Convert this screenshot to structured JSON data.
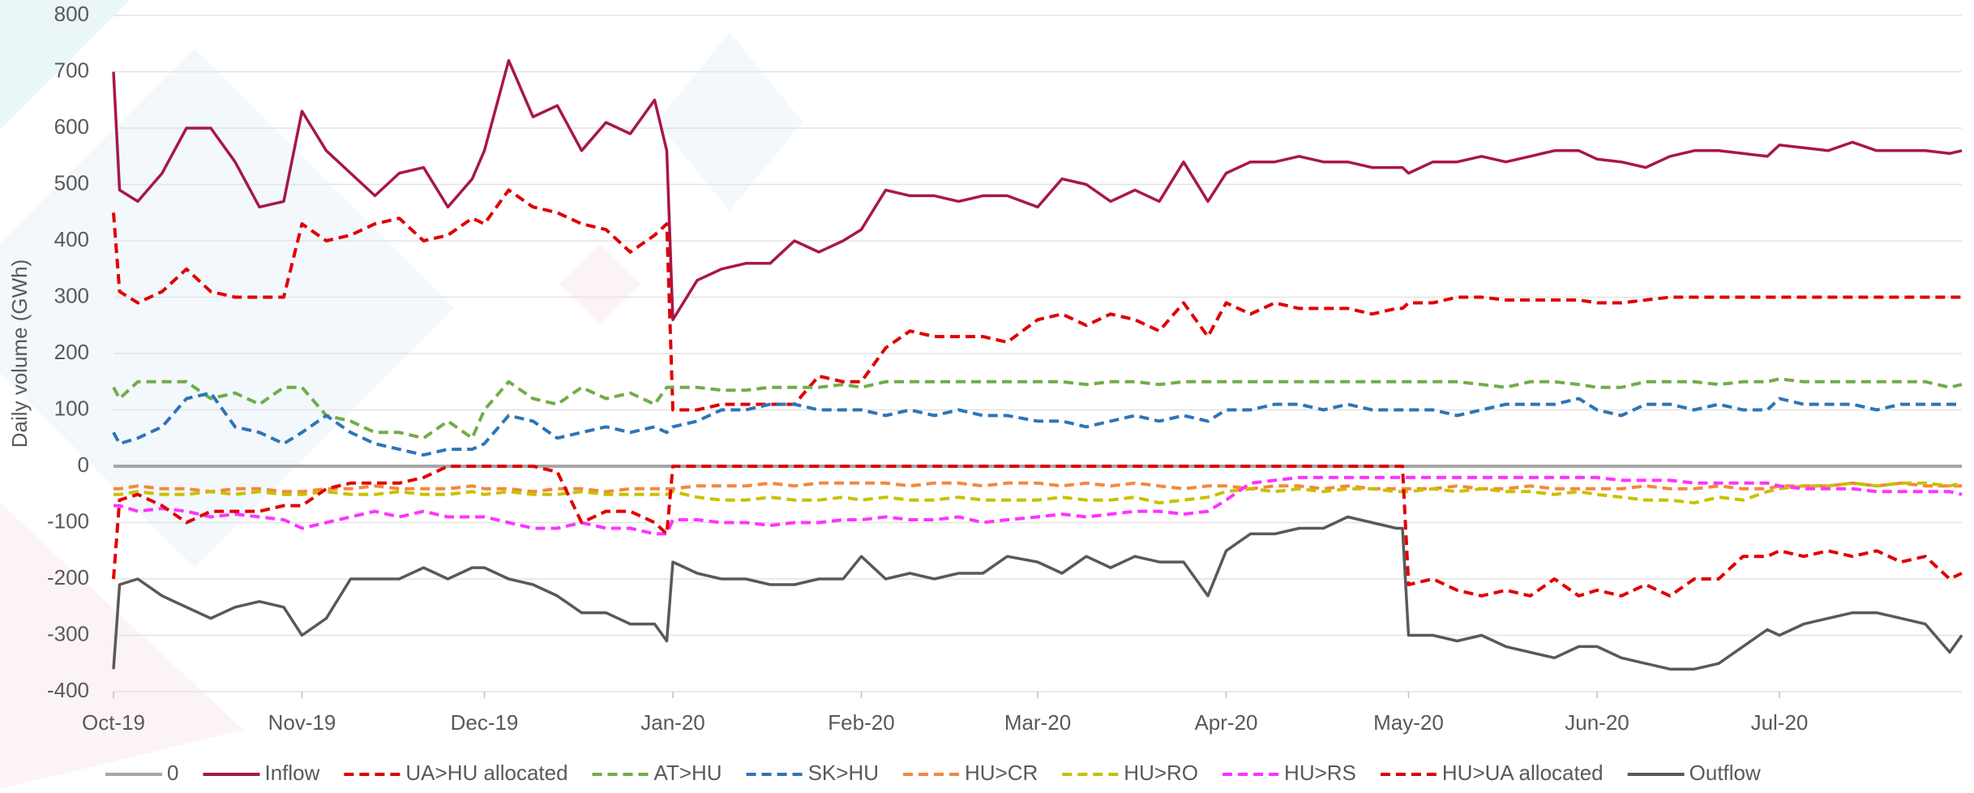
{
  "chart_data": {
    "type": "line",
    "y_label": "Daily volume (GWh)",
    "grid": true,
    "legend": "bottom",
    "xlim": [
      0,
      304
    ],
    "ylim": [
      -400,
      800
    ],
    "yticks": [
      -400,
      -300,
      -200,
      -100,
      0,
      100,
      200,
      300,
      400,
      500,
      600,
      700,
      800
    ],
    "xticks": [
      {
        "value": 0,
        "label": "Oct-19"
      },
      {
        "value": 31,
        "label": "Nov-19"
      },
      {
        "value": 61,
        "label": "Dec-19"
      },
      {
        "value": 92,
        "label": "Jan-20"
      },
      {
        "value": 123,
        "label": "Feb-20"
      },
      {
        "value": 152,
        "label": "Mar-20"
      },
      {
        "value": 183,
        "label": "Apr-20"
      },
      {
        "value": 213,
        "label": "May-20"
      },
      {
        "value": 244,
        "label": "Jun-20"
      },
      {
        "value": 274,
        "label": "Jul-20"
      }
    ],
    "x": [
      0,
      1,
      4,
      8,
      12,
      16,
      20,
      24,
      28,
      31,
      35,
      39,
      43,
      47,
      51,
      55,
      59,
      61,
      65,
      69,
      73,
      77,
      81,
      85,
      89,
      91,
      92,
      96,
      100,
      104,
      108,
      112,
      116,
      120,
      123,
      127,
      131,
      135,
      139,
      143,
      147,
      152,
      156,
      160,
      164,
      168,
      172,
      176,
      180,
      183,
      187,
      191,
      195,
      199,
      203,
      207,
      211,
      212,
      213,
      217,
      221,
      225,
      229,
      233,
      237,
      241,
      244,
      248,
      252,
      256,
      260,
      264,
      268,
      272,
      274,
      278,
      282,
      286,
      290,
      294,
      298,
      302,
      304
    ],
    "series": [
      {
        "name": "0",
        "color": "#a6a6a6",
        "style": "solid",
        "values": [
          0,
          0,
          0,
          0,
          0,
          0,
          0,
          0,
          0,
          0,
          0,
          0,
          0,
          0,
          0,
          0,
          0,
          0,
          0,
          0,
          0,
          0,
          0,
          0,
          0,
          0,
          0,
          0,
          0,
          0,
          0,
          0,
          0,
          0,
          0,
          0,
          0,
          0,
          0,
          0,
          0,
          0,
          0,
          0,
          0,
          0,
          0,
          0,
          0,
          0,
          0,
          0,
          0,
          0,
          0,
          0,
          0,
          0,
          0,
          0,
          0,
          0,
          0,
          0,
          0,
          0,
          0,
          0,
          0,
          0,
          0,
          0,
          0,
          0,
          0,
          0,
          0,
          0,
          0,
          0,
          0,
          0,
          0
        ]
      },
      {
        "name": "Inflow",
        "color": "#a8174a",
        "style": "solid",
        "values": [
          700,
          490,
          470,
          520,
          600,
          600,
          540,
          460,
          470,
          630,
          560,
          520,
          480,
          520,
          530,
          460,
          510,
          560,
          720,
          620,
          640,
          560,
          610,
          590,
          650,
          560,
          260,
          330,
          350,
          360,
          360,
          400,
          380,
          400,
          420,
          490,
          480,
          480,
          470,
          480,
          480,
          460,
          510,
          500,
          470,
          490,
          470,
          540,
          470,
          520,
          540,
          540,
          550,
          540,
          540,
          530,
          530,
          530,
          520,
          540,
          540,
          550,
          540,
          550,
          560,
          560,
          545,
          540,
          530,
          550,
          560,
          560,
          555,
          550,
          570,
          565,
          560,
          575,
          560,
          560,
          560,
          555,
          560
        ]
      },
      {
        "name": "UA>HU allocated",
        "color": "#e00000",
        "style": "dashed",
        "values": [
          450,
          310,
          290,
          310,
          350,
          310,
          300,
          300,
          300,
          430,
          400,
          410,
          430,
          440,
          400,
          410,
          440,
          430,
          490,
          460,
          450,
          430,
          420,
          380,
          410,
          430,
          100,
          100,
          110,
          110,
          110,
          110,
          160,
          150,
          150,
          210,
          240,
          230,
          230,
          230,
          220,
          260,
          270,
          250,
          270,
          260,
          240,
          290,
          230,
          290,
          270,
          290,
          280,
          280,
          280,
          270,
          280,
          280,
          290,
          290,
          300,
          300,
          295,
          295,
          295,
          295,
          290,
          290,
          295,
          300,
          300,
          300,
          300,
          300,
          300,
          300,
          300,
          300,
          300,
          300,
          300,
          300,
          300
        ]
      },
      {
        "name": "AT>HU",
        "color": "#70ad47",
        "style": "dashed",
        "values": [
          140,
          120,
          150,
          150,
          150,
          120,
          130,
          110,
          140,
          140,
          90,
          80,
          60,
          60,
          50,
          80,
          50,
          100,
          150,
          120,
          110,
          140,
          120,
          130,
          110,
          140,
          140,
          140,
          135,
          135,
          140,
          140,
          140,
          145,
          140,
          150,
          150,
          150,
          150,
          150,
          150,
          150,
          150,
          145,
          150,
          150,
          145,
          150,
          150,
          150,
          150,
          150,
          150,
          150,
          150,
          150,
          150,
          150,
          150,
          150,
          150,
          145,
          140,
          150,
          150,
          145,
          140,
          140,
          150,
          150,
          150,
          145,
          150,
          150,
          155,
          150,
          150,
          150,
          150,
          150,
          150,
          140,
          145
        ]
      },
      {
        "name": "SK>HU",
        "color": "#2e75b6",
        "style": "dashed",
        "values": [
          60,
          40,
          50,
          70,
          120,
          130,
          70,
          60,
          40,
          60,
          90,
          60,
          40,
          30,
          20,
          30,
          30,
          40,
          90,
          80,
          50,
          60,
          70,
          60,
          70,
          60,
          70,
          80,
          100,
          100,
          110,
          110,
          100,
          100,
          100,
          90,
          100,
          90,
          100,
          90,
          90,
          80,
          80,
          70,
          80,
          90,
          80,
          90,
          80,
          100,
          100,
          110,
          110,
          100,
          110,
          100,
          100,
          100,
          100,
          100,
          90,
          100,
          110,
          110,
          110,
          120,
          100,
          90,
          110,
          110,
          100,
          110,
          100,
          100,
          120,
          110,
          110,
          110,
          100,
          110,
          110,
          110,
          110
        ]
      },
      {
        "name": "HU>CR",
        "color": "#f4883a",
        "style": "dashed",
        "values": [
          -40,
          -40,
          -35,
          -40,
          -40,
          -45,
          -40,
          -40,
          -45,
          -45,
          -40,
          -40,
          -35,
          -40,
          -40,
          -40,
          -35,
          -40,
          -40,
          -45,
          -40,
          -40,
          -45,
          -40,
          -40,
          -40,
          -40,
          -35,
          -35,
          -35,
          -30,
          -35,
          -30,
          -30,
          -30,
          -30,
          -35,
          -30,
          -30,
          -35,
          -30,
          -30,
          -35,
          -30,
          -35,
          -30,
          -35,
          -40,
          -35,
          -35,
          -40,
          -35,
          -35,
          -40,
          -35,
          -40,
          -40,
          -40,
          -40,
          -40,
          -35,
          -40,
          -40,
          -35,
          -40,
          -40,
          -40,
          -40,
          -35,
          -40,
          -40,
          -35,
          -40,
          -40,
          -35,
          -35,
          -35,
          -30,
          -35,
          -30,
          -35,
          -35,
          -35
        ]
      },
      {
        "name": "HU>RO",
        "color": "#c9c000",
        "style": "dashed",
        "values": [
          -50,
          -50,
          -45,
          -50,
          -50,
          -45,
          -50,
          -45,
          -50,
          -50,
          -45,
          -50,
          -50,
          -45,
          -50,
          -50,
          -45,
          -50,
          -45,
          -50,
          -50,
          -45,
          -50,
          -50,
          -50,
          -50,
          -45,
          -55,
          -60,
          -60,
          -55,
          -60,
          -60,
          -55,
          -60,
          -55,
          -60,
          -60,
          -55,
          -60,
          -60,
          -60,
          -55,
          -60,
          -60,
          -55,
          -65,
          -60,
          -55,
          -45,
          -40,
          -45,
          -40,
          -45,
          -40,
          -40,
          -45,
          -45,
          -45,
          -40,
          -45,
          -40,
          -45,
          -45,
          -50,
          -45,
          -50,
          -55,
          -60,
          -60,
          -65,
          -55,
          -60,
          -45,
          -40,
          -35,
          -35,
          -30,
          -35,
          -30,
          -30,
          -35,
          -30
        ]
      },
      {
        "name": "HU>RS",
        "color": "#ff33ff",
        "style": "dashed",
        "values": [
          -70,
          -70,
          -80,
          -75,
          -80,
          -90,
          -85,
          -90,
          -95,
          -110,
          -100,
          -90,
          -80,
          -90,
          -80,
          -90,
          -90,
          -90,
          -100,
          -110,
          -110,
          -100,
          -110,
          -110,
          -120,
          -120,
          -95,
          -95,
          -100,
          -100,
          -105,
          -100,
          -100,
          -95,
          -95,
          -90,
          -95,
          -95,
          -90,
          -100,
          -95,
          -90,
          -85,
          -90,
          -85,
          -80,
          -80,
          -85,
          -80,
          -60,
          -30,
          -25,
          -20,
          -20,
          -20,
          -20,
          -20,
          -20,
          -20,
          -20,
          -20,
          -20,
          -20,
          -20,
          -20,
          -20,
          -20,
          -25,
          -25,
          -25,
          -30,
          -30,
          -30,
          -30,
          -35,
          -40,
          -40,
          -40,
          -45,
          -45,
          -45,
          -45,
          -50
        ]
      },
      {
        "name": "HU>UA allocated",
        "color": "#e00000",
        "style": "dashed",
        "values": [
          -200,
          -60,
          -50,
          -70,
          -100,
          -80,
          -80,
          -80,
          -70,
          -70,
          -40,
          -30,
          -30,
          -30,
          -20,
          0,
          0,
          0,
          0,
          0,
          -10,
          -100,
          -80,
          -80,
          -100,
          -120,
          0,
          0,
          0,
          0,
          0,
          0,
          0,
          0,
          0,
          0,
          0,
          0,
          0,
          0,
          0,
          0,
          0,
          0,
          0,
          0,
          0,
          0,
          0,
          0,
          0,
          0,
          0,
          0,
          0,
          0,
          0,
          0,
          -210,
          -200,
          -220,
          -230,
          -220,
          -230,
          -200,
          -230,
          -220,
          -230,
          -210,
          -230,
          -200,
          -200,
          -160,
          -160,
          -150,
          -160,
          -150,
          -160,
          -150,
          -170,
          -160,
          -200,
          -190
        ]
      },
      {
        "name": "Outflow",
        "color": "#595959",
        "style": "solid",
        "values": [
          -360,
          -210,
          -200,
          -230,
          -250,
          -270,
          -250,
          -240,
          -250,
          -300,
          -270,
          -200,
          -200,
          -200,
          -180,
          -200,
          -180,
          -180,
          -200,
          -210,
          -230,
          -260,
          -260,
          -280,
          -280,
          -310,
          -170,
          -190,
          -200,
          -200,
          -210,
          -210,
          -200,
          -200,
          -160,
          -200,
          -190,
          -200,
          -190,
          -190,
          -160,
          -170,
          -190,
          -160,
          -180,
          -160,
          -170,
          -170,
          -230,
          -150,
          -120,
          -120,
          -110,
          -110,
          -90,
          -100,
          -110,
          -110,
          -300,
          -300,
          -310,
          -300,
          -320,
          -330,
          -340,
          -320,
          -320,
          -340,
          -350,
          -360,
          -360,
          -350,
          -320,
          -290,
          -300,
          -280,
          -270,
          -260,
          -260,
          -270,
          -280,
          -330,
          -300
        ]
      }
    ]
  }
}
